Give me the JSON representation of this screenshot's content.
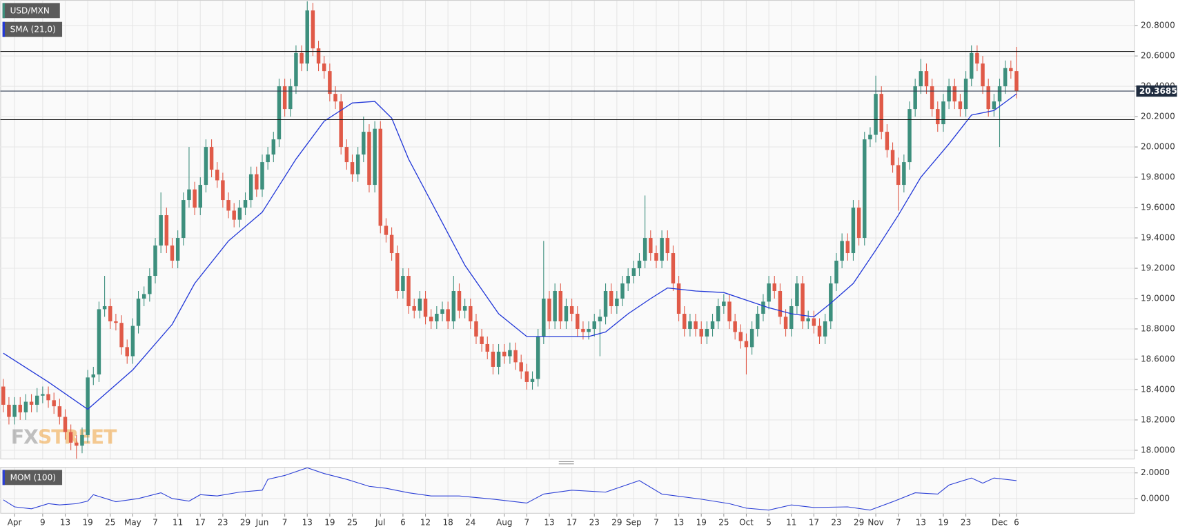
{
  "chart_data": [
    {
      "type": "candlestick",
      "title": "USD/MXN",
      "open": [
        18.42,
        18.3,
        18.22,
        18.3,
        18.25,
        18.32,
        18.3,
        18.36,
        18.37,
        18.33,
        18.29,
        18.22,
        18.12,
        18.05,
        18.03,
        18.1,
        18.48,
        18.5,
        18.93,
        18.95,
        18.85,
        18.84,
        18.68,
        18.62,
        18.82,
        19.0,
        19.03,
        19.15,
        19.35,
        19.55,
        19.35,
        19.25,
        19.4,
        19.65,
        19.72,
        19.6,
        19.75,
        20.0,
        19.85,
        19.78,
        19.65,
        19.58,
        19.52,
        19.6,
        19.65,
        19.82,
        19.72,
        19.9,
        19.95,
        20.05,
        20.4,
        20.25,
        20.4,
        20.62,
        20.55,
        20.9,
        20.65,
        20.55,
        20.5,
        20.35,
        20.3,
        20.0,
        19.9,
        19.82,
        19.95,
        20.1,
        19.75,
        20.12,
        19.48,
        19.42,
        19.3,
        19.05,
        19.15,
        18.95,
        18.92,
        19.0,
        18.88,
        18.85,
        18.9,
        18.93,
        18.85,
        19.05,
        18.92,
        18.95,
        18.85,
        18.75,
        18.7,
        18.65,
        18.55,
        18.65,
        18.62,
        18.66,
        18.58,
        18.52,
        18.45,
        18.47,
        18.75,
        19.0,
        18.85,
        19.05,
        18.85,
        18.95,
        18.9,
        18.8,
        18.78,
        18.8,
        18.85,
        18.88,
        19.05,
        18.95,
        19.0,
        19.1,
        19.15,
        19.2,
        19.25,
        19.4,
        19.3,
        19.25,
        19.4,
        19.3,
        19.1,
        18.9,
        18.8,
        18.85,
        18.8,
        18.75,
        18.8,
        18.85,
        18.95,
        18.98,
        18.85,
        18.78,
        18.72,
        18.68,
        18.8,
        18.9,
        18.98,
        19.1,
        19.05,
        18.88,
        18.8,
        18.95,
        19.1,
        18.85,
        18.87,
        18.82,
        18.75,
        18.85,
        19.1,
        19.25,
        19.38,
        19.3,
        19.6,
        19.4,
        20.05,
        20.08,
        20.35,
        20.1,
        19.98,
        19.88,
        19.75,
        19.9,
        20.25,
        20.4,
        20.5,
        20.4,
        20.25,
        20.15,
        20.3,
        20.4,
        20.3,
        20.25,
        20.45,
        20.62,
        20.55,
        20.4,
        20.25,
        20.3,
        20.4,
        20.52,
        20.5
      ],
      "high": [
        18.47,
        18.35,
        18.35,
        18.35,
        18.37,
        18.37,
        18.41,
        18.42,
        18.42,
        18.38,
        18.34,
        18.27,
        18.17,
        18.1,
        18.15,
        18.53,
        18.55,
        18.98,
        19.15,
        19.0,
        18.9,
        18.89,
        18.73,
        18.87,
        19.05,
        19.08,
        19.2,
        19.4,
        19.7,
        19.6,
        19.4,
        19.45,
        19.7,
        20.0,
        19.77,
        19.8,
        20.05,
        20.05,
        19.9,
        19.83,
        19.7,
        19.63,
        19.65,
        19.7,
        19.87,
        19.87,
        19.95,
        20.0,
        20.1,
        20.45,
        20.45,
        20.45,
        20.67,
        20.67,
        20.96,
        20.95,
        20.7,
        20.6,
        20.55,
        20.4,
        20.35,
        20.05,
        19.95,
        20.0,
        20.2,
        20.15,
        20.17,
        20.17,
        19.53,
        19.47,
        19.35,
        19.2,
        19.2,
        19.0,
        19.05,
        19.05,
        18.93,
        18.95,
        18.98,
        18.98,
        19.15,
        19.1,
        19.0,
        19.0,
        18.9,
        18.8,
        18.75,
        18.7,
        18.7,
        18.7,
        18.71,
        18.71,
        18.63,
        18.57,
        18.52,
        18.8,
        19.38,
        19.05,
        19.1,
        19.1,
        19.0,
        19.0,
        18.95,
        18.85,
        18.85,
        18.9,
        18.93,
        19.1,
        19.1,
        19.05,
        19.15,
        19.2,
        19.25,
        19.3,
        19.68,
        19.45,
        19.35,
        19.45,
        19.45,
        19.35,
        19.15,
        18.95,
        18.9,
        18.9,
        18.85,
        18.85,
        18.9,
        19.0,
        19.03,
        19.03,
        18.9,
        18.83,
        18.77,
        18.85,
        18.95,
        19.03,
        19.15,
        19.15,
        19.1,
        18.93,
        19.0,
        19.15,
        19.15,
        18.92,
        18.92,
        18.87,
        18.9,
        19.15,
        19.3,
        19.43,
        19.43,
        19.65,
        19.65,
        20.1,
        20.13,
        20.47,
        20.4,
        20.15,
        20.03,
        19.93,
        19.95,
        20.3,
        20.45,
        20.58,
        20.55,
        20.45,
        20.3,
        20.35,
        20.45,
        20.45,
        20.35,
        20.5,
        20.67,
        20.67,
        20.6,
        20.45,
        20.35,
        20.45,
        20.57,
        20.57,
        20.66
      ],
      "low": [
        18.25,
        18.17,
        18.17,
        18.2,
        18.2,
        18.25,
        18.25,
        18.31,
        18.28,
        18.24,
        18.17,
        18.07,
        18.0,
        17.94,
        17.98,
        18.05,
        18.43,
        18.45,
        18.88,
        18.8,
        18.79,
        18.63,
        18.57,
        18.57,
        18.77,
        18.95,
        18.98,
        19.1,
        19.3,
        19.3,
        19.2,
        19.2,
        19.35,
        19.6,
        19.55,
        19.55,
        19.7,
        19.8,
        19.73,
        19.6,
        19.53,
        19.47,
        19.47,
        19.55,
        19.6,
        19.67,
        19.67,
        19.85,
        19.9,
        20.0,
        20.2,
        20.2,
        20.35,
        20.5,
        20.5,
        20.6,
        20.5,
        20.45,
        20.3,
        20.25,
        19.95,
        19.85,
        19.77,
        19.77,
        19.9,
        19.7,
        19.7,
        19.43,
        19.37,
        19.25,
        19.0,
        19.0,
        18.9,
        18.87,
        18.87,
        18.83,
        18.8,
        18.8,
        18.85,
        18.8,
        18.8,
        18.87,
        18.87,
        18.8,
        18.7,
        18.65,
        18.6,
        18.5,
        18.5,
        18.57,
        18.57,
        18.53,
        18.47,
        18.4,
        18.4,
        18.42,
        18.7,
        18.8,
        18.8,
        18.8,
        18.8,
        18.85,
        18.75,
        18.73,
        18.73,
        18.75,
        18.62,
        18.83,
        18.9,
        18.9,
        18.95,
        19.05,
        19.1,
        19.15,
        19.2,
        19.25,
        19.2,
        19.2,
        19.25,
        19.05,
        18.85,
        18.75,
        18.75,
        18.75,
        18.7,
        18.7,
        18.75,
        18.8,
        18.9,
        18.8,
        18.73,
        18.67,
        18.5,
        18.63,
        18.75,
        18.85,
        18.93,
        19.0,
        18.83,
        18.75,
        18.75,
        18.9,
        18.8,
        18.8,
        18.77,
        18.7,
        18.7,
        18.8,
        19.05,
        19.2,
        19.25,
        19.25,
        19.35,
        19.35,
        20.0,
        20.03,
        20.05,
        19.93,
        19.83,
        19.58,
        19.7,
        19.85,
        20.2,
        20.35,
        20.35,
        20.2,
        20.1,
        20.1,
        20.25,
        20.25,
        20.2,
        20.2,
        20.4,
        20.5,
        20.35,
        20.2,
        20.2,
        20.0,
        20.35,
        20.45,
        20.32
      ],
      "close": [
        18.3,
        18.22,
        18.3,
        18.25,
        18.32,
        18.3,
        18.36,
        18.37,
        18.33,
        18.29,
        18.22,
        18.12,
        18.05,
        18.03,
        18.1,
        18.48,
        18.5,
        18.93,
        18.95,
        18.85,
        18.84,
        18.68,
        18.62,
        18.82,
        19.0,
        19.03,
        19.15,
        19.35,
        19.55,
        19.35,
        19.25,
        19.4,
        19.65,
        19.72,
        19.6,
        19.75,
        20.0,
        19.85,
        19.78,
        19.65,
        19.58,
        19.52,
        19.6,
        19.65,
        19.82,
        19.72,
        19.9,
        19.95,
        20.05,
        20.4,
        20.25,
        20.4,
        20.62,
        20.55,
        20.9,
        20.65,
        20.55,
        20.5,
        20.35,
        20.3,
        20.0,
        19.9,
        19.82,
        19.95,
        20.1,
        19.75,
        20.12,
        19.48,
        19.42,
        19.3,
        19.05,
        19.15,
        18.95,
        18.92,
        19.0,
        18.88,
        18.85,
        18.9,
        18.93,
        18.85,
        19.05,
        18.92,
        18.95,
        18.85,
        18.75,
        18.7,
        18.65,
        18.55,
        18.65,
        18.62,
        18.66,
        18.58,
        18.52,
        18.45,
        18.47,
        18.75,
        19.0,
        18.85,
        19.05,
        18.85,
        18.95,
        18.9,
        18.8,
        18.78,
        18.8,
        18.85,
        18.88,
        19.05,
        18.95,
        19.0,
        19.1,
        19.15,
        19.2,
        19.25,
        19.4,
        19.3,
        19.25,
        19.4,
        19.3,
        19.1,
        18.9,
        18.8,
        18.85,
        18.8,
        18.75,
        18.8,
        18.85,
        18.95,
        18.98,
        18.85,
        18.78,
        18.72,
        18.68,
        18.8,
        18.9,
        18.98,
        19.1,
        19.05,
        18.88,
        18.8,
        18.95,
        19.1,
        18.85,
        18.87,
        18.82,
        18.75,
        18.85,
        19.1,
        19.25,
        19.38,
        19.3,
        19.6,
        19.4,
        20.05,
        20.08,
        20.35,
        20.1,
        19.98,
        19.88,
        19.75,
        19.9,
        20.25,
        20.4,
        20.5,
        20.4,
        20.25,
        20.15,
        20.3,
        20.4,
        20.3,
        20.25,
        20.45,
        20.62,
        20.55,
        20.4,
        20.25,
        20.3,
        20.4,
        20.52,
        20.5,
        20.37
      ],
      "up_color": "#3d8f7d",
      "down_color": "#e05a48",
      "xlim": [
        -0.54,
        201
      ],
      "xticks": [
        {
          "value": 2,
          "label": "Apr"
        },
        {
          "value": 7,
          "label": "9"
        },
        {
          "value": 11,
          "label": "13"
        },
        {
          "value": 15,
          "label": "19"
        },
        {
          "value": 19,
          "label": "25"
        },
        {
          "value": 23,
          "label": "May"
        },
        {
          "value": 27,
          "label": "7"
        },
        {
          "value": 31,
          "label": "11"
        },
        {
          "value": 35,
          "label": "17"
        },
        {
          "value": 39,
          "label": "23"
        },
        {
          "value": 43,
          "label": "29"
        },
        {
          "value": 46,
          "label": "Jun"
        },
        {
          "value": 50,
          "label": "7"
        },
        {
          "value": 54,
          "label": "13"
        },
        {
          "value": 58,
          "label": "19"
        },
        {
          "value": 62,
          "label": "25"
        },
        {
          "value": 67,
          "label": "Jul"
        },
        {
          "value": 71,
          "label": "6"
        },
        {
          "value": 75,
          "label": "12"
        },
        {
          "value": 79,
          "label": "18"
        },
        {
          "value": 83,
          "label": "24"
        },
        {
          "value": 89,
          "label": "Aug"
        },
        {
          "value": 93,
          "label": "7"
        },
        {
          "value": 97,
          "label": "13"
        },
        {
          "value": 101,
          "label": "17"
        },
        {
          "value": 105,
          "label": "23"
        },
        {
          "value": 109,
          "label": "29"
        },
        {
          "value": 112,
          "label": "Sep"
        },
        {
          "value": 116,
          "label": "7"
        },
        {
          "value": 120,
          "label": "13"
        },
        {
          "value": 124,
          "label": "19"
        },
        {
          "value": 128,
          "label": "25"
        },
        {
          "value": 132,
          "label": "Oct"
        },
        {
          "value": 136,
          "label": "5"
        },
        {
          "value": 140,
          "label": "11"
        },
        {
          "value": 144,
          "label": "17"
        },
        {
          "value": 148,
          "label": "23"
        },
        {
          "value": 152,
          "label": "29"
        },
        {
          "value": 155,
          "label": "Nov"
        },
        {
          "value": 159,
          "label": "7"
        },
        {
          "value": 163,
          "label": "13"
        },
        {
          "value": 167,
          "label": "19"
        },
        {
          "value": 171,
          "label": "23"
        },
        {
          "value": 177,
          "label": "Dec"
        },
        {
          "value": 180,
          "label": "6"
        }
      ],
      "ylim": [
        17.945,
        20.964
      ],
      "yticks": [
        {
          "value": 18,
          "label": "18.0000"
        },
        {
          "value": 18.2,
          "label": "18.2000"
        },
        {
          "value": 18.4,
          "label": "18.4000"
        },
        {
          "value": 18.6,
          "label": "18.6000"
        },
        {
          "value": 18.8,
          "label": "18.8000"
        },
        {
          "value": 19,
          "label": "19.0000"
        },
        {
          "value": 19.2,
          "label": "19.2000"
        },
        {
          "value": 19.4,
          "label": "19.4000"
        },
        {
          "value": 19.6,
          "label": "19.6000"
        },
        {
          "value": 19.8,
          "label": "19.8000"
        },
        {
          "value": 20,
          "label": "20.0000"
        },
        {
          "value": 20.2,
          "label": "20.2000"
        },
        {
          "value": 20.4,
          "label": "20.4000"
        },
        {
          "value": 20.6,
          "label": "20.6000"
        },
        {
          "value": 20.8,
          "label": "20.8000"
        }
      ],
      "grid": true,
      "overlay": {
        "name": "SMA (21,0)",
        "color": "#2238d8",
        "x": [
          0,
          8,
          15,
          23,
          30,
          34,
          40,
          46,
          52,
          57,
          62,
          66,
          69,
          72,
          77,
          82,
          88,
          93,
          99,
          104,
          107,
          111,
          115,
          118,
          123,
          128,
          132,
          136,
          140,
          144,
          147,
          151,
          155,
          159,
          163,
          168,
          172,
          176,
          180
        ],
        "values": [
          18.64,
          18.45,
          18.27,
          18.53,
          18.83,
          19.1,
          19.38,
          19.57,
          19.92,
          20.17,
          20.29,
          20.3,
          20.19,
          19.92,
          19.57,
          19.22,
          18.9,
          18.75,
          18.75,
          18.75,
          18.78,
          18.9,
          19.0,
          19.07,
          19.05,
          19.04,
          18.99,
          18.94,
          18.9,
          18.88,
          18.97,
          19.1,
          19.32,
          19.55,
          19.8,
          20.02,
          20.21,
          20.24,
          20.35
        ]
      },
      "levels": [
        20.63,
        20.18
      ],
      "last_price": {
        "value": 20.3685,
        "label": "20.36850"
      },
      "watermark": [
        "FX",
        "STREET"
      ]
    },
    {
      "type": "line",
      "title": "MOM (100)",
      "color": "#2b3fd6",
      "xlim": [
        -0.54,
        201
      ],
      "x": [
        0,
        2,
        5,
        8,
        10,
        13,
        15,
        16,
        20,
        24,
        28,
        30,
        33,
        35,
        38,
        42,
        46,
        47,
        50,
        54,
        57,
        61,
        65,
        68,
        72,
        76,
        81,
        87,
        93,
        96,
        101,
        107,
        113,
        117,
        124,
        129,
        132,
        136,
        140,
        144,
        150,
        154,
        158,
        162,
        166,
        168,
        172,
        174,
        176,
        180
      ],
      "values": [
        -0.1,
        -0.65,
        -0.8,
        -0.4,
        -0.5,
        -0.4,
        -0.2,
        0.3,
        -0.25,
        0,
        0.45,
        0,
        -0.2,
        0.3,
        0.2,
        0.5,
        0.65,
        1.5,
        1.8,
        2.4,
        1.95,
        1.5,
        0.95,
        0.8,
        0.45,
        0.2,
        0.2,
        -0.05,
        -0.35,
        0.35,
        0.65,
        0.5,
        1.4,
        0.35,
        -0.05,
        -0.4,
        -0.75,
        -0.9,
        -0.5,
        -0.7,
        -0.65,
        -0.9,
        -0.25,
        0.45,
        0.35,
        1.05,
        1.6,
        1.2,
        1.6,
        1.4
      ],
      "ylim": [
        -1.12,
        2.41
      ],
      "yticks": [
        {
          "value": 0,
          "label": "0.0000"
        },
        {
          "value": 2,
          "label": "2.0000"
        }
      ],
      "grid": true
    }
  ]
}
